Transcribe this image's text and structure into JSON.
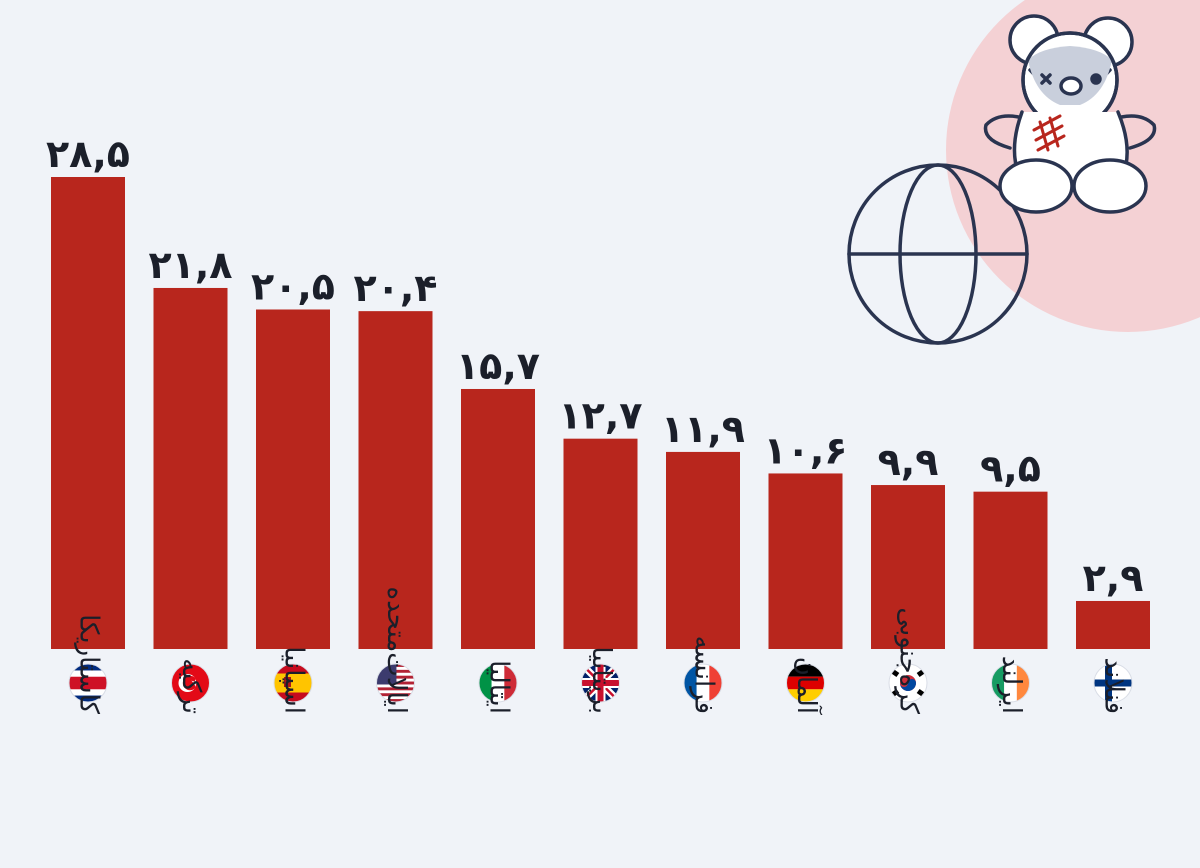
{
  "colors": {
    "background": "#f0f3f8",
    "bar": "#b8261d",
    "text": "#1b1f2a",
    "decor_circle": "#f4d1d4",
    "line_art": "#2a3450",
    "patch": "#b8261d"
  },
  "decor": {
    "teddy_icon": "teddy-bear-icon",
    "globe_icon": "globe-icon"
  },
  "chart_data": {
    "type": "bar",
    "title": "",
    "xlabel": "",
    "ylabel": "",
    "ylim": [
      0,
      30
    ],
    "grid": false,
    "categories": [
      "کاستاریکا",
      "ترکیه",
      "اسپانیا",
      "ایالات‌متحده",
      "ایتالیا",
      "بریتانیا",
      "فرانسه",
      "آلمان",
      "کره‌جنوبی",
      "ایرلند",
      "فنلاند"
    ],
    "values": [
      28.5,
      21.8,
      20.5,
      20.4,
      15.7,
      12.7,
      11.9,
      10.6,
      9.9,
      9.5,
      2.9
    ],
    "value_labels": [
      "۲۸,۵",
      "۲۱,۸",
      "۲۰,۵",
      "۲۰,۴",
      "۱۵,۷",
      "۱۲,۷",
      "۱۱,۹",
      "۱۰,۶",
      "۹,۹",
      "۹,۵",
      "۲,۹"
    ],
    "flags": [
      "costa-rica-flag-icon",
      "turkey-flag-icon",
      "spain-flag-icon",
      "usa-flag-icon",
      "italy-flag-icon",
      "uk-flag-icon",
      "france-flag-icon",
      "germany-flag-icon",
      "south-korea-flag-icon",
      "ireland-flag-icon",
      "finland-flag-icon"
    ]
  }
}
